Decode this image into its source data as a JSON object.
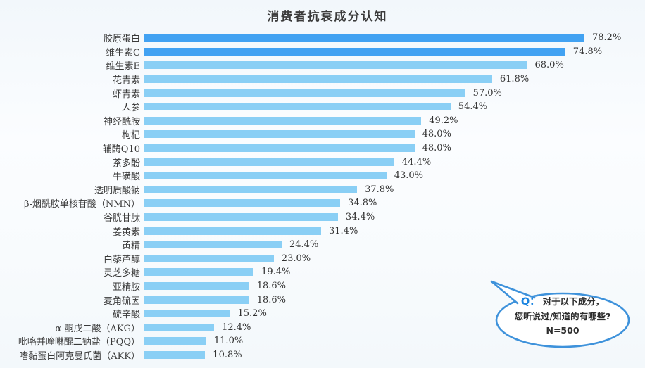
{
  "chart_data": {
    "type": "bar",
    "orientation": "horizontal",
    "title": "消费者抗衰成分认知",
    "xlabel": "",
    "ylabel": "",
    "xlim": [
      0,
      80
    ],
    "grid": false,
    "legend": "none",
    "value_label_format": "0.0%",
    "highlight_first_n": 2,
    "colors": {
      "highlight_bar": "#42a2f2",
      "bar": "#8acff5",
      "axis_line": "#d6dadd",
      "label_text": "#3a3a3a",
      "value_text": "#333333"
    },
    "categories": [
      "胶原蛋白",
      "维生素C",
      "维生素E",
      "花青素",
      "虾青素",
      "人参",
      "神经酰胺",
      "枸杞",
      "辅酶Q10",
      "茶多酚",
      "牛磺酸",
      "透明质酸钠",
      "β-烟酰胺单核苷酸（NMN）",
      "谷胱甘肽",
      "姜黄素",
      "黄精",
      "白藜芦醇",
      "灵芝多糖",
      "亚精胺",
      "麦角硫因",
      "硫辛酸",
      "α-酮戊二酸（AKG）",
      "吡咯并喹啉醌二钠盐（PQQ）",
      "嗜黏蛋白阿克曼氏菌（AKK）"
    ],
    "values": [
      78.2,
      74.8,
      68.0,
      61.8,
      57.0,
      54.4,
      49.2,
      48.0,
      48.0,
      44.4,
      43.0,
      37.8,
      34.8,
      34.4,
      31.4,
      24.4,
      23.0,
      19.4,
      18.6,
      18.6,
      15.2,
      12.4,
      11.0,
      10.8
    ]
  },
  "annotation_bubble": {
    "q_label": "Q：",
    "line1": "对于以下成分，",
    "line2": "您听说过/知道的有哪些?",
    "line3": "N=500",
    "border_color": "#3e92db",
    "q_color": "#1b84e0"
  }
}
